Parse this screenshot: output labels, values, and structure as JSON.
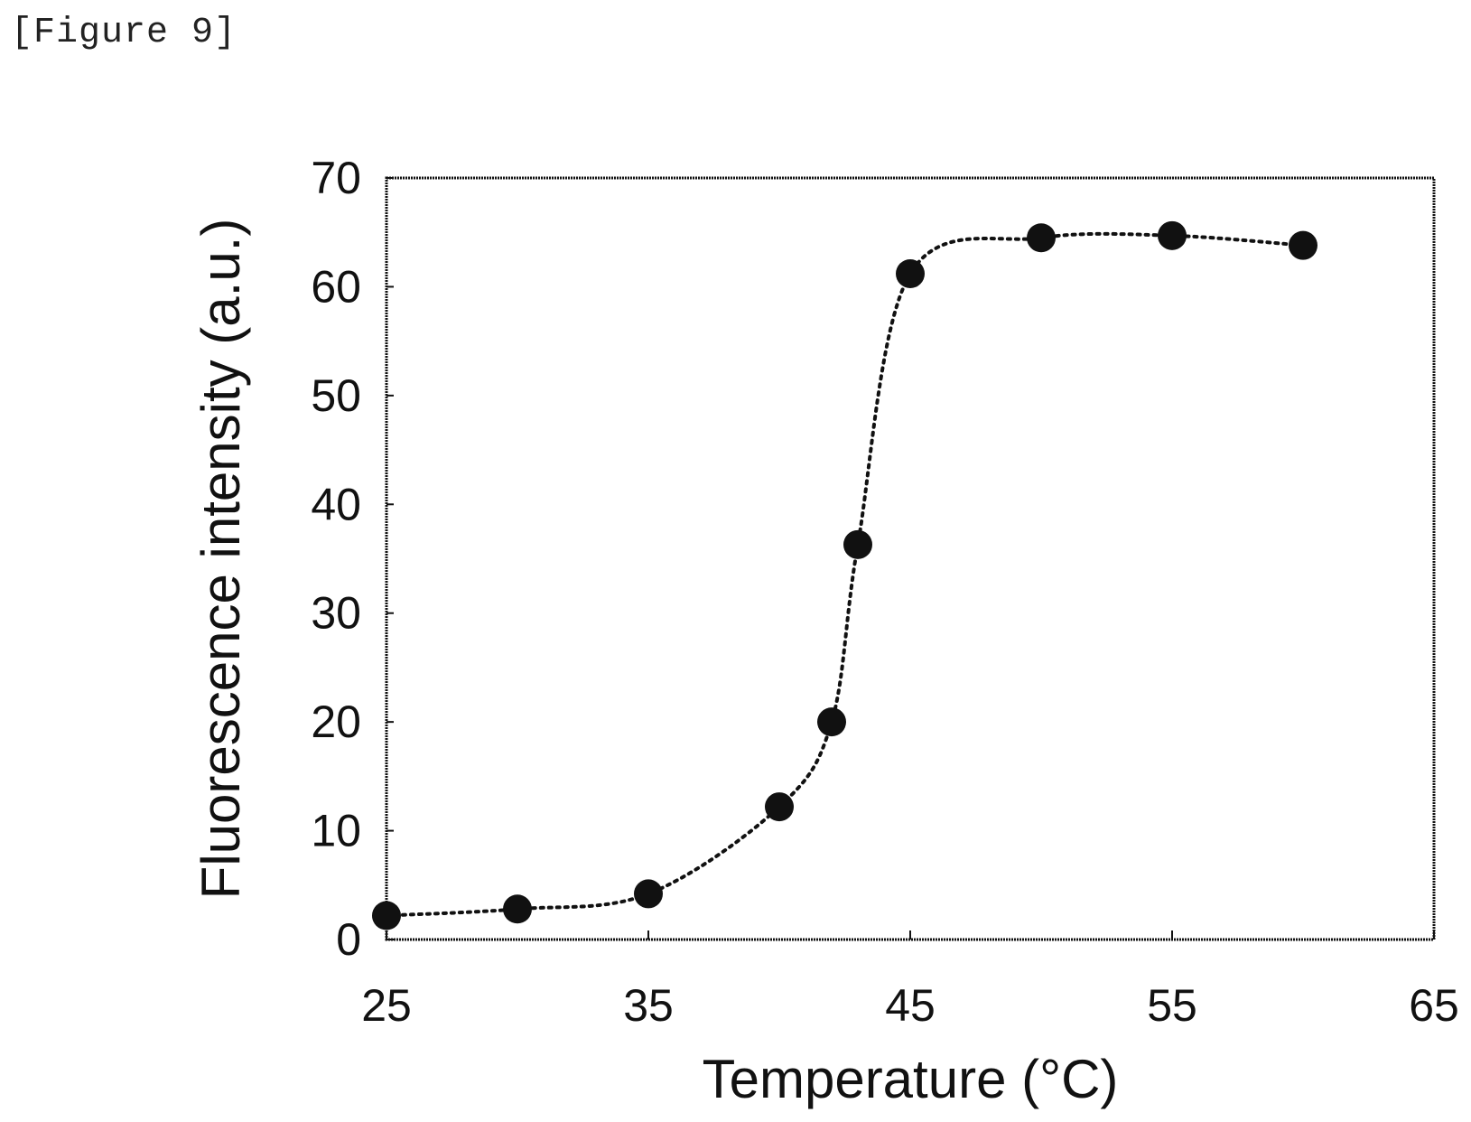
{
  "figure_label": "[Figure 9]",
  "chart_data": {
    "type": "scatter",
    "title": "",
    "xlabel": "Temperature (°C)",
    "ylabel": "Fluorescence intensity (a.u.)",
    "xlim": [
      25,
      65
    ],
    "ylim": [
      0,
      70
    ],
    "xticks": [
      25,
      35,
      45,
      55,
      65
    ],
    "yticks": [
      0,
      10,
      20,
      30,
      40,
      50,
      60,
      70
    ],
    "grid": false,
    "legend": "none",
    "series": [
      {
        "marker": "filled-circle",
        "line": "dotted",
        "color": "#111111",
        "points": [
          {
            "x": 25,
            "y": 2.2
          },
          {
            "x": 30,
            "y": 2.8
          },
          {
            "x": 35,
            "y": 4.2
          },
          {
            "x": 40,
            "y": 12.2
          },
          {
            "x": 42,
            "y": 20.0
          },
          {
            "x": 43,
            "y": 36.3
          },
          {
            "x": 45,
            "y": 61.2
          },
          {
            "x": 50,
            "y": 64.5
          },
          {
            "x": 55,
            "y": 64.7
          },
          {
            "x": 60,
            "y": 63.8
          }
        ]
      }
    ]
  }
}
